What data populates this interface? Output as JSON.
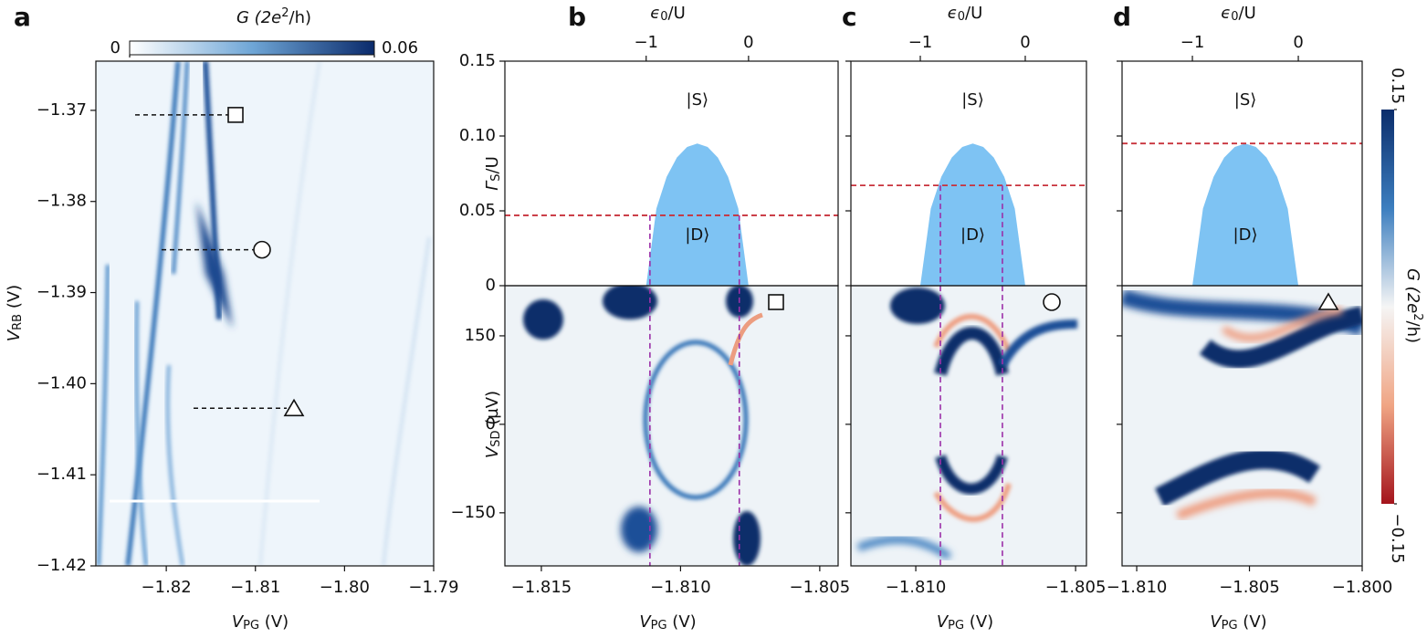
{
  "chart_data": [
    {
      "type": "heatmap",
      "panel": "a",
      "colorbar": {
        "label": [
          "G (2e",
          "2",
          "/h)"
        ],
        "ticks": [
          0,
          0.06
        ]
      },
      "xlabel": [
        "V",
        "PG",
        " (V)"
      ],
      "ylabel": [
        "V",
        "RB",
        " (V)"
      ],
      "xlim": [
        -1.8279,
        -1.79
      ],
      "xticks": [
        {
          "value": -1.82,
          "label": "−1.82"
        },
        {
          "value": -1.81,
          "label": "−1.81"
        },
        {
          "value": -1.8,
          "label": "−1.80"
        },
        {
          "value": -1.79,
          "label": "−1.79"
        }
      ],
      "ylim": [
        -1.42,
        -1.3646
      ],
      "yticks": [
        {
          "value": -1.37,
          "label": "−1.37"
        },
        {
          "value": -1.38,
          "label": "−1.38"
        },
        {
          "value": -1.39,
          "label": "−1.39"
        },
        {
          "value": -1.4,
          "label": "−1.40"
        },
        {
          "value": -1.41,
          "label": "−1.41"
        },
        {
          "value": -1.42,
          "label": "−1.42"
        }
      ],
      "cuts": [
        -1.3705,
        -1.3853,
        -1.4027
      ]
    },
    {
      "type": "phase-heatmap",
      "panel": "b",
      "top_xlabel": [
        "ϵ",
        "0",
        "/U"
      ],
      "top_xlim": [
        -2.38,
        0.875
      ],
      "top_xticks": [
        {
          "value": -1,
          "label": "−1"
        },
        0
      ],
      "phase_boundary": {
        "x": [
          -1,
          -0.9,
          -0.8,
          -0.7,
          -0.6,
          -0.5,
          -0.4,
          -0.3,
          -0.2,
          -0.1,
          0
        ],
        "y": [
          0,
          0.0515,
          0.0727,
          0.0856,
          0.0927,
          0.095,
          0.0927,
          0.0856,
          0.0727,
          0.0515,
          0
        ]
      },
      "states": [
        "|S⟩",
        "|D⟩"
      ],
      "gamma": 0.047,
      "cut_x": [
        -1.8111,
        -1.80789
      ],
      "ylabel": [
        "Γ",
        "S",
        "/U"
      ],
      "ylim": [
        0,
        0.15
      ],
      "yticks": [
        0,
        {
          "value": 0.05,
          "label": "0.05"
        },
        {
          "value": 0.1,
          "label": "0.10"
        },
        {
          "value": 0.15,
          "label": "0.15"
        }
      ],
      "vsd_ylabel": [
        "V",
        "SD",
        " (µV)"
      ],
      "vsd_ylim": [
        -240,
        235
      ],
      "vsd_yticks": [
        {
          "value": -150,
          "label": "−150"
        },
        0,
        150
      ],
      "xlabel": [
        "V",
        "PG",
        " (V)"
      ],
      "xlim": [
        -1.81631,
        -1.80434
      ],
      "xticks": [
        {
          "value": -1.815,
          "label": "−1.815"
        },
        {
          "value": -1.81,
          "label": "−1.810"
        },
        {
          "value": -1.805,
          "label": "−1.805"
        }
      ]
    },
    {
      "type": "phase-heatmap",
      "panel": "c",
      "top_xlabel": [
        "ϵ",
        "0",
        "/U"
      ],
      "top_xlim": [
        -1.661,
        0.583
      ],
      "top_xticks": [
        {
          "value": -1,
          "label": "−1"
        },
        0
      ],
      "phase_boundary": {
        "x": [
          -1,
          -0.9,
          -0.8,
          -0.7,
          -0.6,
          -0.5,
          -0.4,
          -0.3,
          -0.2,
          -0.1,
          0
        ],
        "y": [
          0,
          0.0515,
          0.0727,
          0.0856,
          0.0927,
          0.095,
          0.0927,
          0.0856,
          0.0727,
          0.0515,
          0
        ]
      },
      "states": [
        "|S⟩",
        "|D⟩"
      ],
      "gamma": 0.067,
      "cut_x": [
        -1.80923,
        -1.80729
      ],
      "ylim": [
        0,
        0.15
      ],
      "yticks": [
        0,
        0.05,
        0.1,
        0.15
      ],
      "vsd_ylim": [
        -240,
        235
      ],
      "vsd_yticks": [
        -150,
        0,
        150
      ],
      "xlabel": [
        "V",
        "PG",
        " (V)"
      ],
      "xlim": [
        -1.81203,
        -1.80466
      ],
      "xticks": [
        {
          "value": -1.81,
          "label": "−1.810"
        },
        {
          "value": -1.805,
          "label": "−1.805"
        }
      ]
    },
    {
      "type": "phase-heatmap",
      "panel": "d",
      "top_xlabel": [
        "ϵ",
        "0",
        "/U"
      ],
      "top_xlim": [
        -1.664,
        0.603
      ],
      "top_xticks": [
        {
          "value": -1,
          "label": "−1"
        },
        0
      ],
      "phase_boundary": {
        "x": [
          -1,
          -0.9,
          -0.8,
          -0.7,
          -0.6,
          -0.5,
          -0.4,
          -0.3,
          -0.2,
          -0.1,
          0
        ],
        "y": [
          0,
          0.0515,
          0.0727,
          0.0856,
          0.0927,
          0.095,
          0.0927,
          0.0856,
          0.0727,
          0.0515,
          0
        ]
      },
      "states": [
        "|S⟩",
        "|D⟩"
      ],
      "gamma": 0.095,
      "ylim": [
        0,
        0.15
      ],
      "yticks": [
        0,
        0.05,
        0.1,
        0.15
      ],
      "vsd_ylim": [
        -240,
        235
      ],
      "vsd_yticks": [
        -150,
        0,
        150
      ],
      "xlabel": [
        "V",
        "PG",
        " (V)"
      ],
      "xlim": [
        -1.81065,
        -1.8
      ],
      "xticks": [
        {
          "value": -1.81,
          "label": "−1.810"
        },
        {
          "value": -1.805,
          "label": "−1.805"
        },
        {
          "value": -1.8,
          "label": "−1.800"
        }
      ],
      "colorbar": {
        "label": [
          "G (2e",
          "2",
          "/h)"
        ],
        "ticks": [
          {
            "value": -0.15,
            "label": "−0.15"
          },
          {
            "value": 0.15,
            "label": "0.15"
          }
        ]
      }
    }
  ]
}
